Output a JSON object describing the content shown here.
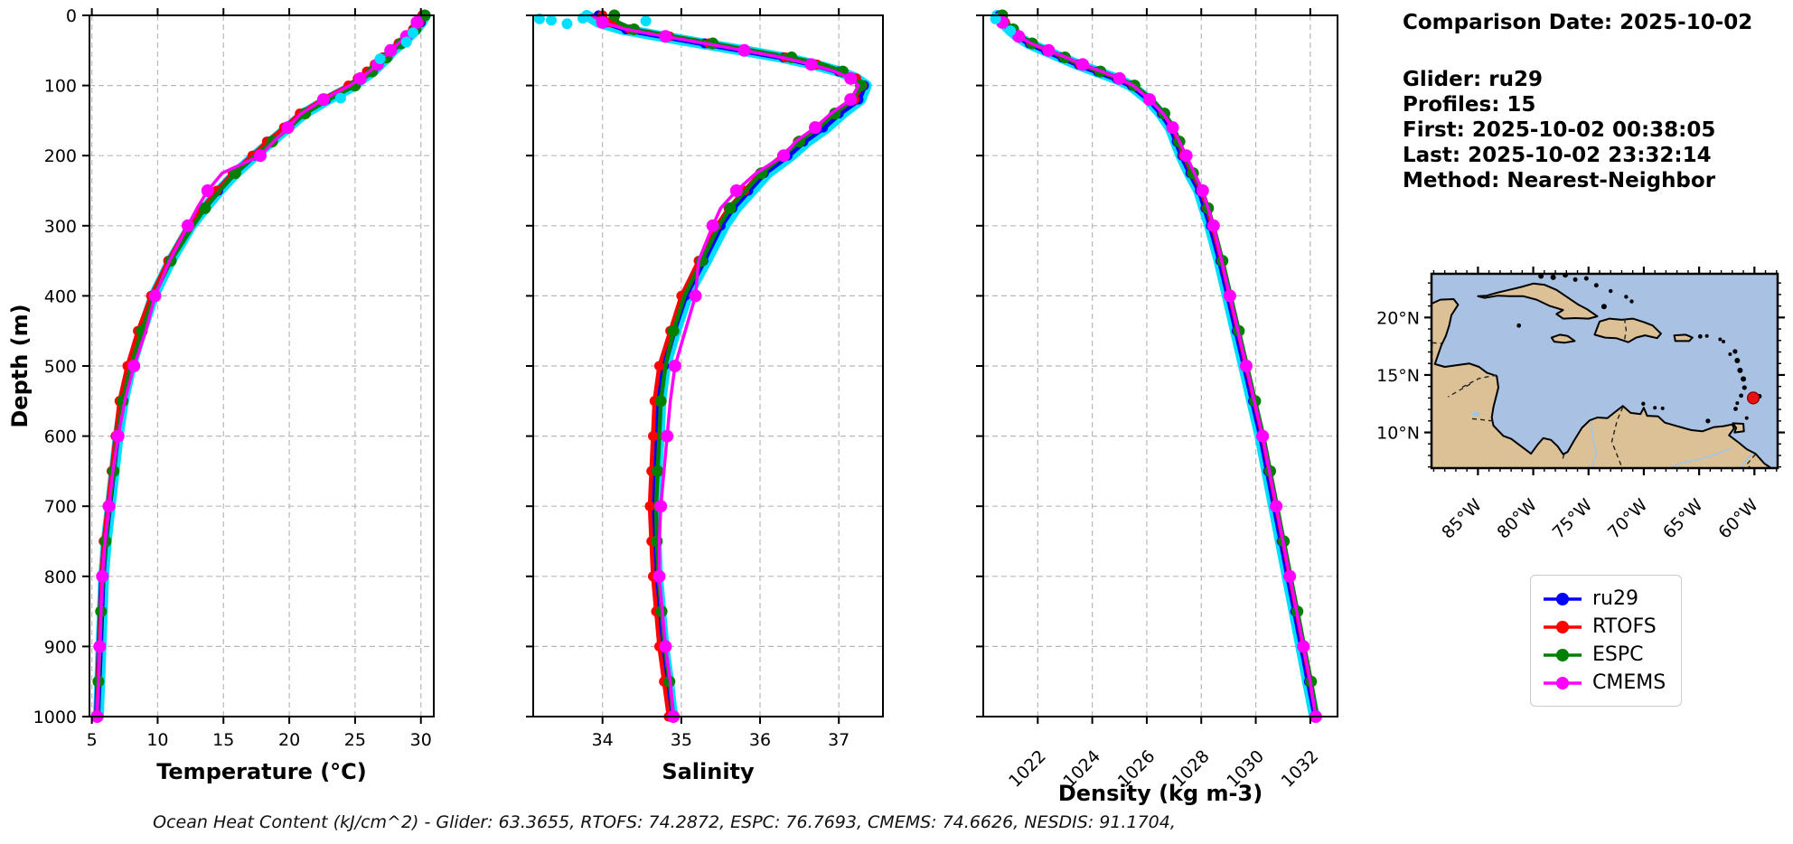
{
  "info": {
    "comparison_date": "Comparison Date: 2025-10-02",
    "lines": [
      "Glider: ru29",
      "Profiles: 15",
      "First: 2025-10-02 00:38:05",
      "Last: 2025-10-02 23:32:14",
      "Method: Nearest-Neighbor"
    ]
  },
  "caption": "Ocean Heat Content (kJ/cm^2) - Glider: 63.3655,  RTOFS: 74.2872,  ESPC: 76.7693,  CMEMS: 74.6626,  NESDIS: 91.1704,",
  "legend": {
    "entries": [
      {
        "label": "ru29",
        "color": "#0000ff"
      },
      {
        "label": "RTOFS",
        "color": "#ff0000"
      },
      {
        "label": "ESPC",
        "color": "#008000"
      },
      {
        "label": "CMEMS",
        "color": "#ff00ff"
      }
    ]
  },
  "colors": {
    "glider_raw": "#00dfff",
    "ru29": "#0000ff",
    "rtofs": "#ff0000",
    "espc": "#008000",
    "cmems": "#ff00ff",
    "grid": "#b8b8b8",
    "ocean": "#a9c2e4",
    "land": "#dcc096",
    "river": "#9fc6e8",
    "marker_red": "#e81010"
  },
  "map": {
    "extent": {
      "lon_min": -89.2,
      "lon_max": -57.9,
      "lat_min": 6.9,
      "lat_max": 23.8
    },
    "lon_ticks": [
      {
        "value": -85,
        "label": "85°W"
      },
      {
        "value": -80,
        "label": "80°W"
      },
      {
        "value": -75,
        "label": "75°W"
      },
      {
        "value": -70,
        "label": "70°W"
      },
      {
        "value": -65,
        "label": "65°W"
      },
      {
        "value": -60,
        "label": "60°W"
      }
    ],
    "lat_ticks": [
      {
        "value": 20,
        "label": "20°N"
      },
      {
        "value": 15,
        "label": "15°N"
      },
      {
        "value": 10,
        "label": "10°N"
      }
    ],
    "marker": {
      "lon": -60.1,
      "lat": 13.0
    }
  },
  "chart_data": [
    {
      "type": "line",
      "xlabel": "Temperature (°C)",
      "ylabel": "Depth (m)",
      "xlim": [
        4.82,
        30.98
      ],
      "ylim": [
        0,
        1000
      ],
      "x_ticks": [
        5,
        10,
        15,
        20,
        25,
        30
      ],
      "y_ticks": [
        0,
        100,
        200,
        300,
        400,
        500,
        600,
        700,
        800,
        900,
        1000
      ],
      "depths": [
        0,
        10,
        20,
        30,
        40,
        50,
        60,
        70,
        80,
        90,
        100,
        120,
        140,
        160,
        180,
        200,
        225,
        250,
        275,
        300,
        350,
        400,
        450,
        500,
        550,
        600,
        650,
        700,
        750,
        800,
        850,
        900,
        950,
        1000
      ],
      "series": [
        {
          "name": "glider-raw",
          "values": [
            30.35,
            30.05,
            29.65,
            29.1,
            28.55,
            27.9,
            27.45,
            26.9,
            26.35,
            25.6,
            24.95,
            22.95,
            21.15,
            19.9,
            18.65,
            17.4,
            15.95,
            14.7,
            13.6,
            12.55,
            11.0,
            9.7,
            8.8,
            8.0,
            7.4,
            7.0,
            6.7,
            6.4,
            6.1,
            5.9,
            5.8,
            5.7,
            5.6,
            5.5
          ]
        },
        {
          "name": "ru29",
          "values": [
            30.2,
            30.0,
            29.5,
            29.0,
            28.4,
            27.8,
            27.3,
            26.8,
            26.2,
            25.5,
            24.8,
            22.8,
            21.0,
            19.8,
            18.5,
            17.3,
            15.8,
            14.6,
            13.5,
            12.4,
            10.9,
            9.6,
            8.7,
            7.9,
            7.3,
            6.9,
            6.6,
            6.3,
            6.0,
            5.8,
            5.7,
            5.6,
            5.5,
            5.4
          ]
        },
        {
          "name": "RTOFS",
          "values": [
            30.1,
            29.9,
            29.4,
            28.9,
            28.3,
            27.7,
            27.1,
            26.5,
            25.9,
            25.2,
            24.5,
            22.5,
            20.8,
            19.6,
            18.3,
            17.2,
            15.7,
            14.5,
            13.4,
            12.3,
            10.8,
            9.5,
            8.5,
            7.7,
            7.1,
            6.8,
            6.5,
            6.2,
            5.9,
            5.75,
            5.65,
            5.55,
            5.45,
            5.35
          ]
        },
        {
          "name": "ESPC",
          "values": [
            30.3,
            30.05,
            29.6,
            29.1,
            28.5,
            27.9,
            27.4,
            26.9,
            26.3,
            25.7,
            25.0,
            23.0,
            21.2,
            20.0,
            18.7,
            17.4,
            15.9,
            14.7,
            13.6,
            12.7,
            11.0,
            9.7,
            8.8,
            7.95,
            7.35,
            6.95,
            6.65,
            6.35,
            6.05,
            5.85,
            5.7,
            5.6,
            5.5,
            5.45
          ]
        },
        {
          "name": "CMEMS",
          "values": [
            29.9,
            29.7,
            29.3,
            28.9,
            28.3,
            27.7,
            27.2,
            26.7,
            26.1,
            25.4,
            24.6,
            22.6,
            20.9,
            19.9,
            18.8,
            17.8,
            14.9,
            13.8,
            13.0,
            12.3,
            10.9,
            9.8,
            9.1,
            8.2,
            7.5,
            7.0,
            6.6,
            6.3,
            6.0,
            5.8,
            5.7,
            5.6,
            5.5,
            5.4
          ]
        }
      ],
      "scatter": [
        {
          "x": 29.4,
          "depth": 25
        },
        {
          "x": 28.9,
          "depth": 38
        },
        {
          "x": 26.9,
          "depth": 62
        },
        {
          "x": 23.9,
          "depth": 118
        }
      ]
    },
    {
      "type": "line",
      "xlabel": "Salinity",
      "xlim": [
        33.12,
        37.56
      ],
      "ylim": [
        0,
        1000
      ],
      "x_ticks": [
        34,
        35,
        36,
        37
      ],
      "y_ticks": [
        0,
        100,
        200,
        300,
        400,
        500,
        600,
        700,
        800,
        900,
        1000
      ],
      "depths": [
        0,
        10,
        20,
        30,
        40,
        50,
        60,
        70,
        80,
        90,
        100,
        120,
        140,
        160,
        180,
        200,
        225,
        250,
        275,
        300,
        350,
        400,
        450,
        500,
        550,
        600,
        650,
        700,
        750,
        800,
        850,
        900,
        950,
        1000
      ],
      "series": [
        {
          "name": "glider-raw",
          "values": [
            33.8,
            33.95,
            34.25,
            34.75,
            35.25,
            35.78,
            36.28,
            36.68,
            37.0,
            37.22,
            37.35,
            37.28,
            37.05,
            36.85,
            36.6,
            36.4,
            36.1,
            35.9,
            35.7,
            35.55,
            35.32,
            35.08,
            34.93,
            34.8,
            34.74,
            34.72,
            34.69,
            34.67,
            34.68,
            34.7,
            34.74,
            34.78,
            34.84,
            34.89
          ]
        },
        {
          "name": "ru29",
          "values": [
            33.95,
            34.05,
            34.3,
            34.8,
            35.3,
            35.8,
            36.3,
            36.7,
            37.0,
            37.2,
            37.32,
            37.25,
            37.0,
            36.8,
            36.55,
            36.35,
            36.05,
            35.85,
            35.65,
            35.5,
            35.28,
            35.05,
            34.9,
            34.78,
            34.72,
            34.7,
            34.67,
            34.65,
            34.66,
            34.68,
            34.72,
            34.76,
            34.82,
            34.87
          ]
        },
        {
          "name": "RTOFS",
          "values": [
            34.0,
            34.1,
            34.35,
            34.85,
            35.35,
            35.82,
            36.32,
            36.72,
            37.02,
            37.22,
            37.3,
            37.2,
            36.95,
            36.72,
            36.48,
            36.28,
            36.0,
            35.8,
            35.6,
            35.45,
            35.22,
            35.0,
            34.86,
            34.72,
            34.66,
            34.64,
            34.62,
            34.6,
            34.62,
            34.64,
            34.68,
            34.72,
            34.78,
            34.84
          ]
        },
        {
          "name": "ESPC",
          "values": [
            34.15,
            34.2,
            34.4,
            34.9,
            35.4,
            35.9,
            36.4,
            36.8,
            37.05,
            37.2,
            37.28,
            37.18,
            36.95,
            36.75,
            36.5,
            36.3,
            36.02,
            35.82,
            35.62,
            35.48,
            35.26,
            35.04,
            34.9,
            34.8,
            34.74,
            34.72,
            34.7,
            34.68,
            34.69,
            34.71,
            34.75,
            34.79,
            34.85,
            34.9
          ]
        },
        {
          "name": "CMEMS",
          "values": [
            33.87,
            34.0,
            34.3,
            34.8,
            35.3,
            35.8,
            36.28,
            36.65,
            36.95,
            37.15,
            37.25,
            37.15,
            36.9,
            36.7,
            36.45,
            36.3,
            35.95,
            35.7,
            35.5,
            35.4,
            35.22,
            35.18,
            35.05,
            34.92,
            34.86,
            34.82,
            34.78,
            34.74,
            34.72,
            34.72,
            34.76,
            34.8,
            34.86,
            34.9
          ]
        }
      ],
      "scatter": [
        {
          "x": 33.35,
          "depth": 7
        },
        {
          "x": 33.55,
          "depth": 12
        },
        {
          "x": 33.75,
          "depth": 4
        },
        {
          "x": 34.55,
          "depth": 8
        },
        {
          "x": 33.2,
          "depth": 5
        }
      ]
    },
    {
      "type": "line",
      "xlabel": "Density (kg m-3)",
      "xlim": [
        1020.0,
        1033.0
      ],
      "ylim": [
        0,
        1000
      ],
      "x_ticks": [
        1022,
        1024,
        1026,
        1028,
        1030,
        1032
      ],
      "x_tick_rotation": -45,
      "y_ticks": [
        0,
        100,
        200,
        300,
        400,
        500,
        600,
        700,
        800,
        900,
        1000
      ],
      "depths": [
        0,
        10,
        20,
        30,
        40,
        50,
        60,
        70,
        80,
        90,
        100,
        120,
        140,
        160,
        180,
        200,
        225,
        250,
        275,
        300,
        350,
        400,
        450,
        500,
        550,
        600,
        650,
        700,
        750,
        800,
        850,
        900,
        950,
        1000
      ],
      "series": [
        {
          "name": "glider-raw",
          "values": [
            1020.5,
            1020.7,
            1020.95,
            1021.25,
            1021.65,
            1022.25,
            1022.85,
            1023.45,
            1024.15,
            1024.85,
            1025.4,
            1026.05,
            1026.5,
            1026.85,
            1027.05,
            1027.25,
            1027.55,
            1027.9,
            1028.1,
            1028.3,
            1028.65,
            1028.95,
            1029.25,
            1029.55,
            1029.85,
            1030.15,
            1030.4,
            1030.65,
            1030.9,
            1031.15,
            1031.4,
            1031.65,
            1031.9,
            1032.15
          ]
        },
        {
          "name": "ru29",
          "values": [
            1020.6,
            1020.75,
            1021.0,
            1021.3,
            1021.7,
            1022.3,
            1022.9,
            1023.5,
            1024.2,
            1024.9,
            1025.45,
            1026.1,
            1026.55,
            1026.9,
            1027.1,
            1027.3,
            1027.6,
            1027.95,
            1028.15,
            1028.35,
            1028.7,
            1029.0,
            1029.3,
            1029.6,
            1029.9,
            1030.2,
            1030.45,
            1030.7,
            1030.95,
            1031.2,
            1031.45,
            1031.7,
            1031.95,
            1032.2
          ]
        },
        {
          "name": "RTOFS",
          "values": [
            1020.65,
            1020.8,
            1021.05,
            1021.35,
            1021.75,
            1022.35,
            1022.95,
            1023.55,
            1024.25,
            1024.95,
            1025.5,
            1026.15,
            1026.6,
            1026.95,
            1027.15,
            1027.35,
            1027.65,
            1028.0,
            1028.2,
            1028.4,
            1028.74,
            1029.04,
            1029.34,
            1029.64,
            1029.94,
            1030.24,
            1030.49,
            1030.74,
            1030.99,
            1031.24,
            1031.49,
            1031.74,
            1031.99,
            1032.22
          ]
        },
        {
          "name": "ESPC",
          "values": [
            1020.7,
            1020.85,
            1021.1,
            1021.4,
            1021.8,
            1022.4,
            1023.0,
            1023.6,
            1024.3,
            1025.0,
            1025.55,
            1026.2,
            1026.65,
            1027.0,
            1027.2,
            1027.4,
            1027.7,
            1028.05,
            1028.25,
            1028.45,
            1028.78,
            1029.08,
            1029.38,
            1029.68,
            1029.98,
            1030.28,
            1030.53,
            1030.78,
            1031.03,
            1031.28,
            1031.53,
            1031.78,
            1032.03,
            1032.25
          ]
        },
        {
          "name": "CMEMS",
          "values": [
            1020.55,
            1020.7,
            1020.95,
            1021.3,
            1021.75,
            1022.4,
            1023.05,
            1023.65,
            1024.35,
            1025.0,
            1025.5,
            1026.1,
            1026.6,
            1026.95,
            1027.2,
            1027.45,
            1027.75,
            1028.05,
            1028.25,
            1028.45,
            1028.75,
            1029.05,
            1029.35,
            1029.65,
            1029.95,
            1030.25,
            1030.5,
            1030.75,
            1031.0,
            1031.25,
            1031.5,
            1031.75,
            1032.0,
            1032.2
          ]
        }
      ],
      "scatter": [
        {
          "x": 1020.45,
          "depth": 5
        },
        {
          "x": 1021.0,
          "depth": 22
        }
      ]
    }
  ]
}
